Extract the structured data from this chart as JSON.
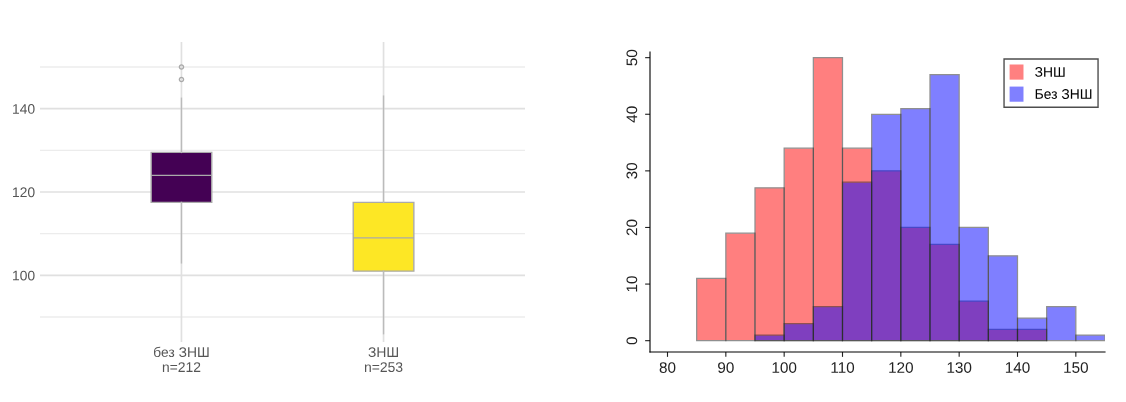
{
  "chart_data": [
    {
      "type": "box",
      "categories": [
        "без ЗНШ\nn=212",
        "ЗНШ\nn=253"
      ],
      "ylim": [
        84,
        156
      ],
      "yticks": [
        100,
        120,
        140
      ],
      "grid": true,
      "colors": [
        "#440154",
        "#fde725"
      ],
      "boxes": [
        {
          "low": 103,
          "q1": 117.5,
          "median": 124,
          "q3": 129.5,
          "high": 142.5,
          "outliers": [
            150,
            147
          ]
        },
        {
          "low": 86,
          "q1": 101,
          "median": 109,
          "q3": 117.5,
          "high": 143
        }
      ]
    },
    {
      "type": "histogram",
      "bins": [
        85,
        90,
        95,
        100,
        105,
        110,
        115,
        120,
        125,
        130,
        135,
        140,
        145,
        150,
        155
      ],
      "xlim": [
        77,
        155
      ],
      "xticks": [
        80,
        90,
        100,
        110,
        120,
        130,
        140,
        150
      ],
      "ylim": [
        -2,
        51
      ],
      "yticks": [
        0,
        10,
        20,
        30,
        40,
        50
      ],
      "legend": "top right",
      "series": [
        {
          "name": "ЗНШ",
          "color": "#ff8080",
          "values": [
            11,
            19,
            27,
            34,
            50,
            34,
            30,
            20,
            17,
            7,
            2,
            2,
            0,
            0
          ]
        },
        {
          "name": "Без ЗНШ",
          "color": "#8080ff",
          "values": [
            0,
            0,
            1,
            3,
            6,
            28,
            40,
            41,
            47,
            20,
            15,
            4,
            6,
            1
          ]
        }
      ]
    }
  ]
}
